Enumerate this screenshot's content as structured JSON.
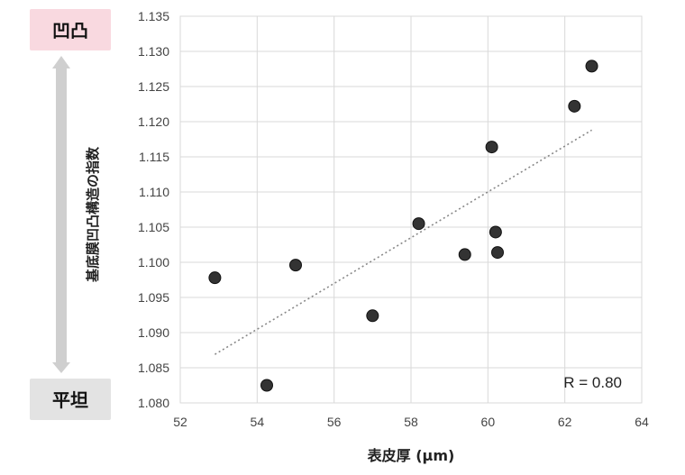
{
  "chart_data": {
    "type": "scatter",
    "xlabel": "表皮厚 (μm)",
    "ylabel": "基底膜凹凸構造の指数",
    "xlim": [
      52,
      64
    ],
    "ylim": [
      1.08,
      1.135
    ],
    "xticks": [
      "52",
      "54",
      "56",
      "58",
      "60",
      "62",
      "64"
    ],
    "yticks": [
      "1.080",
      "1.085",
      "1.090",
      "1.095",
      "1.100",
      "1.105",
      "1.110",
      "1.115",
      "1.120",
      "1.125",
      "1.130",
      "1.135"
    ],
    "grid": true,
    "points": [
      {
        "x": 52.9,
        "y": 1.0978
      },
      {
        "x": 54.25,
        "y": 1.0825
      },
      {
        "x": 55.0,
        "y": 1.0996
      },
      {
        "x": 57.0,
        "y": 1.0924
      },
      {
        "x": 58.2,
        "y": 1.1055
      },
      {
        "x": 59.4,
        "y": 1.1011
      },
      {
        "x": 60.1,
        "y": 1.1164
      },
      {
        "x": 60.2,
        "y": 1.1043
      },
      {
        "x": 60.25,
        "y": 1.1014
      },
      {
        "x": 62.25,
        "y": 1.1222
      },
      {
        "x": 62.7,
        "y": 1.1279
      }
    ],
    "trendline": {
      "style": "dotted",
      "x": [
        52.9,
        62.7
      ],
      "y": [
        1.0869,
        1.1188
      ]
    },
    "annotation": "R = 0.80",
    "top_label": "凹凸",
    "bottom_label": "平坦",
    "colors": {
      "marker": "#333333",
      "top_badge": "#f9d9e0",
      "bottom_badge": "#e3e3e3",
      "arrow": "#cfcfcf",
      "grid": "#d9d9d9",
      "trendline": "#888888"
    }
  }
}
